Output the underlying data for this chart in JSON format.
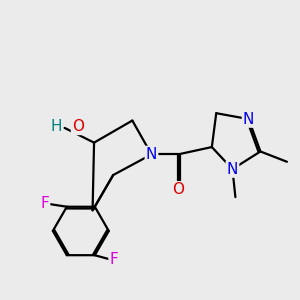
{
  "bg_color": "#ebebeb",
  "atom_colors": {
    "C": "#000000",
    "N": "#0000ee",
    "O": "#dd0000",
    "F": "#dd00dd",
    "H": "#008080"
  },
  "bond_color": "#000000",
  "bond_width": 1.6,
  "font_size_atoms": 11,
  "font_size_small": 9.5
}
